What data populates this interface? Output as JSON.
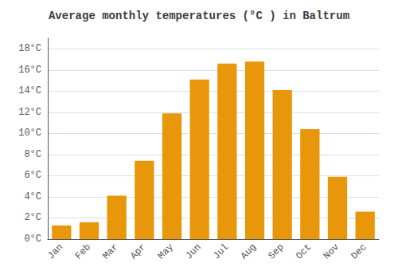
{
  "chart_data": {
    "type": "bar",
    "title": "Average monthly temperatures (°C ) in Baltrum",
    "categories": [
      "Jan",
      "Feb",
      "Mar",
      "Apr",
      "May",
      "Jun",
      "Jul",
      "Aug",
      "Sep",
      "Oct",
      "Nov",
      "Dec"
    ],
    "values": [
      1.3,
      1.6,
      4.1,
      7.4,
      11.9,
      15.1,
      16.6,
      16.8,
      14.1,
      10.4,
      5.9,
      2.6
    ],
    "color": "#E8960A",
    "ylim": [
      0,
      19
    ],
    "yticks": [
      {
        "value": 0,
        "label": "0°C"
      },
      {
        "value": 2,
        "label": "2°C"
      },
      {
        "value": 4,
        "label": "4°C"
      },
      {
        "value": 6,
        "label": "6°C"
      },
      {
        "value": 8,
        "label": "8°C"
      },
      {
        "value": 10,
        "label": "10°C"
      },
      {
        "value": 12,
        "label": "12°C"
      },
      {
        "value": 14,
        "label": "14°C"
      },
      {
        "value": 16,
        "label": "16°C"
      },
      {
        "value": 18,
        "label": "18°C"
      }
    ],
    "grid": true
  }
}
